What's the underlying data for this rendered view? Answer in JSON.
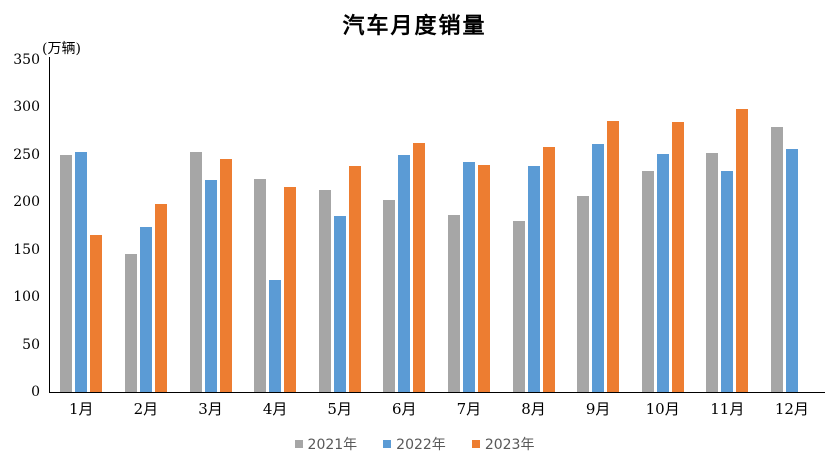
{
  "chart_data": {
    "type": "bar",
    "title": "汽车月度销量",
    "unit_label": "(万辆)",
    "categories": [
      "1月",
      "2月",
      "3月",
      "4月",
      "5月",
      "6月",
      "7月",
      "8月",
      "9月",
      "10月",
      "11月",
      "12月"
    ],
    "series": [
      {
        "name": "2021年",
        "color": "#A6A6A6",
        "values": [
          250,
          146,
          253,
          225,
          213,
          202,
          187,
          180,
          207,
          233,
          252,
          279
        ]
      },
      {
        "name": "2022年",
        "color": "#5B9BD5",
        "values": [
          253,
          174,
          223,
          118,
          186,
          250,
          242,
          238,
          261,
          251,
          233,
          256
        ]
      },
      {
        "name": "2023年",
        "color": "#ED7D31",
        "values": [
          165,
          198,
          246,
          216,
          238,
          262,
          239,
          258,
          286,
          285,
          298,
          null
        ]
      }
    ],
    "ylim": [
      0,
      350
    ],
    "ytick_interval": 50,
    "yticks": [
      0,
      50,
      100,
      150,
      200,
      250,
      300,
      350
    ],
    "grid": false,
    "legend_position": "bottom",
    "axis_color": "#000000",
    "text_color": "#000000",
    "legend_text_color": "#595959"
  }
}
